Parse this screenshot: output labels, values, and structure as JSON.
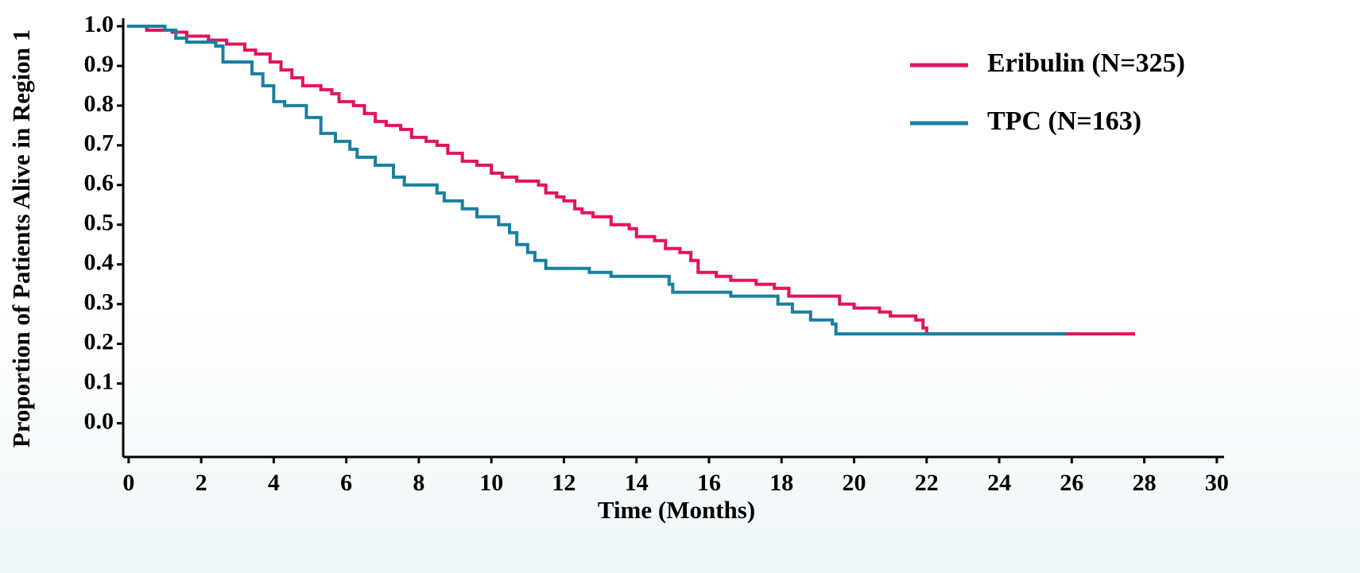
{
  "chart_data": {
    "type": "step",
    "x_label": "Time (Months)",
    "y_label": "Proportion of Patients Alive in Region 1",
    "xlim": [
      -0.15,
      30.2
    ],
    "ylim": [
      -0.085,
      1.02
    ],
    "xticks": [
      0,
      2,
      4,
      6,
      8,
      10,
      12,
      14,
      16,
      18,
      20,
      22,
      24,
      26,
      28,
      30
    ],
    "yticks": [
      {
        "value": 0,
        "label": "0.0"
      },
      0.1,
      0.2,
      0.3,
      0.4,
      0.5,
      0.6,
      0.7,
      0.8,
      0.9,
      {
        "value": 1,
        "label": "1.0"
      }
    ],
    "legend": "top-right",
    "series": [
      {
        "name": "Eribulin (N=325)",
        "color": "#e0145f",
        "x": [
          0,
          0.5,
          1.2,
          1.6,
          2.2,
          2.7,
          3.2,
          3.5,
          3.9,
          4.2,
          4.5,
          4.8,
          5.3,
          5.6,
          5.8,
          6.2,
          6.5,
          6.8,
          7.1,
          7.5,
          7.8,
          8.2,
          8.5,
          8.8,
          9.2,
          9.6,
          10.0,
          10.3,
          10.7,
          11.3,
          11.5,
          11.8,
          12.0,
          12.3,
          12.5,
          12.8,
          13.3,
          13.8,
          14.0,
          14.5,
          14.8,
          15.2,
          15.5,
          15.7,
          16.2,
          16.6,
          17.3,
          17.8,
          18.2,
          19.6,
          20.0,
          20.7,
          21.0,
          21.7,
          21.9,
          22.0,
          27.7
        ],
        "values": [
          1.0,
          0.99,
          0.985,
          0.975,
          0.965,
          0.955,
          0.94,
          0.93,
          0.91,
          0.89,
          0.87,
          0.85,
          0.84,
          0.83,
          0.81,
          0.8,
          0.78,
          0.76,
          0.75,
          0.74,
          0.72,
          0.71,
          0.7,
          0.68,
          0.66,
          0.65,
          0.63,
          0.62,
          0.61,
          0.6,
          0.58,
          0.57,
          0.56,
          0.54,
          0.53,
          0.52,
          0.5,
          0.49,
          0.47,
          0.46,
          0.44,
          0.43,
          0.41,
          0.38,
          0.37,
          0.36,
          0.35,
          0.34,
          0.32,
          0.3,
          0.29,
          0.28,
          0.27,
          0.26,
          0.24,
          0.225,
          0.225
        ]
      },
      {
        "name": "TPC (N=163)",
        "color": "#1a7fa0",
        "x": [
          0,
          1.0,
          1.3,
          1.6,
          2.4,
          2.6,
          3.4,
          3.7,
          4.0,
          4.3,
          4.9,
          5.3,
          5.7,
          6.1,
          6.3,
          6.8,
          7.3,
          7.6,
          8.5,
          8.7,
          9.2,
          9.6,
          10.2,
          10.5,
          10.7,
          11.0,
          11.2,
          11.5,
          12.7,
          13.3,
          14.9,
          15.0,
          16.6,
          17.9,
          18.3,
          18.8,
          19.4,
          19.5,
          25.8
        ],
        "values": [
          1.0,
          0.99,
          0.97,
          0.96,
          0.95,
          0.91,
          0.88,
          0.85,
          0.81,
          0.8,
          0.77,
          0.73,
          0.71,
          0.69,
          0.67,
          0.65,
          0.62,
          0.6,
          0.58,
          0.56,
          0.54,
          0.52,
          0.5,
          0.48,
          0.45,
          0.43,
          0.41,
          0.39,
          0.38,
          0.37,
          0.35,
          0.33,
          0.32,
          0.3,
          0.28,
          0.26,
          0.25,
          0.225,
          0.225
        ]
      }
    ]
  }
}
